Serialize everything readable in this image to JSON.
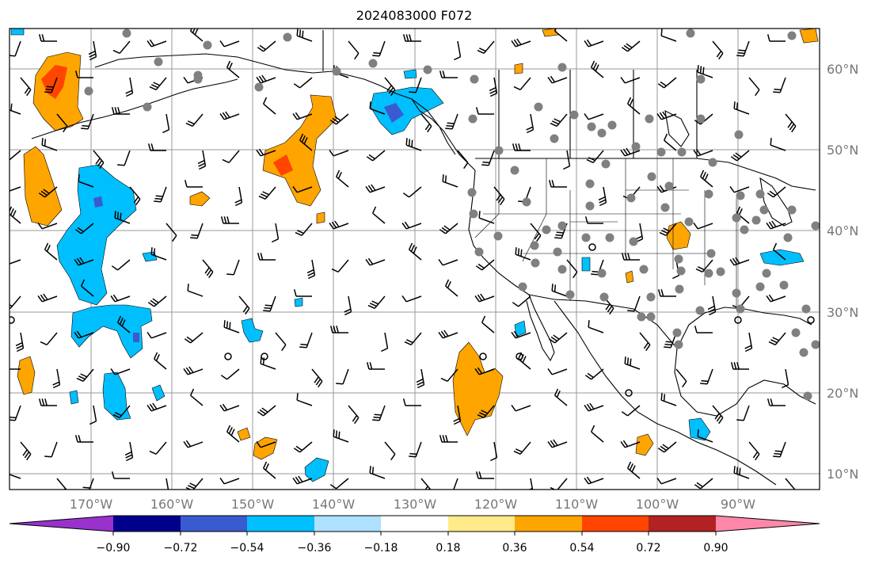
{
  "title": "2024083000 F072",
  "lat_labels": [
    "60°N",
    "50°N",
    "40°N",
    "30°N",
    "20°N",
    "10°N"
  ],
  "lon_labels": [
    "170°W",
    "160°W",
    "150°W",
    "140°W",
    "130°W",
    "120°W",
    "110°W",
    "100°W",
    "90°W"
  ],
  "colorbar": {
    "tick_labels": [
      "−0.90",
      "−0.72",
      "−0.54",
      "−0.36",
      "−0.18",
      "0.18",
      "0.36",
      "0.54",
      "0.72",
      "0.90"
    ],
    "colors": [
      "#9932cc",
      "#00008b",
      "#3a5bd0",
      "#00bfff",
      "#aee0ff",
      "#ffffff",
      "#ffeb8a",
      "#ffa500",
      "#ff4500",
      "#b22222",
      "#ff88aa"
    ]
  },
  "colors": {
    "grid": "#999999",
    "coast": "#000000",
    "station_dot": "#808080",
    "barb": "#000000"
  },
  "map_extent": {
    "lon": [
      -180,
      -80
    ],
    "lat": [
      7,
      64
    ]
  },
  "legend_note": ""
}
